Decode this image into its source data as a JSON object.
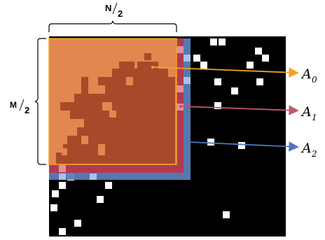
{
  "labels": {
    "n_num": "N",
    "n_den": "2",
    "m_num": "M",
    "m_den": "2",
    "a0_base": "A",
    "a0_sub": "0",
    "a1_base": "A",
    "a1_sub": "1",
    "a2_base": "A",
    "a2_sub": "2"
  },
  "colors": {
    "background": "#000000",
    "speckle": "#ffffff",
    "region_a0": "#e08850",
    "region_a0_border": "#f5a020",
    "region_a1": "#b03a52",
    "region_a2": "#5a7fb8",
    "arrow_a0": "#f5a020",
    "arrow_a1": "#c05868",
    "arrow_a2": "#4a78c0",
    "inner_pattern": "#a64a2a"
  }
}
